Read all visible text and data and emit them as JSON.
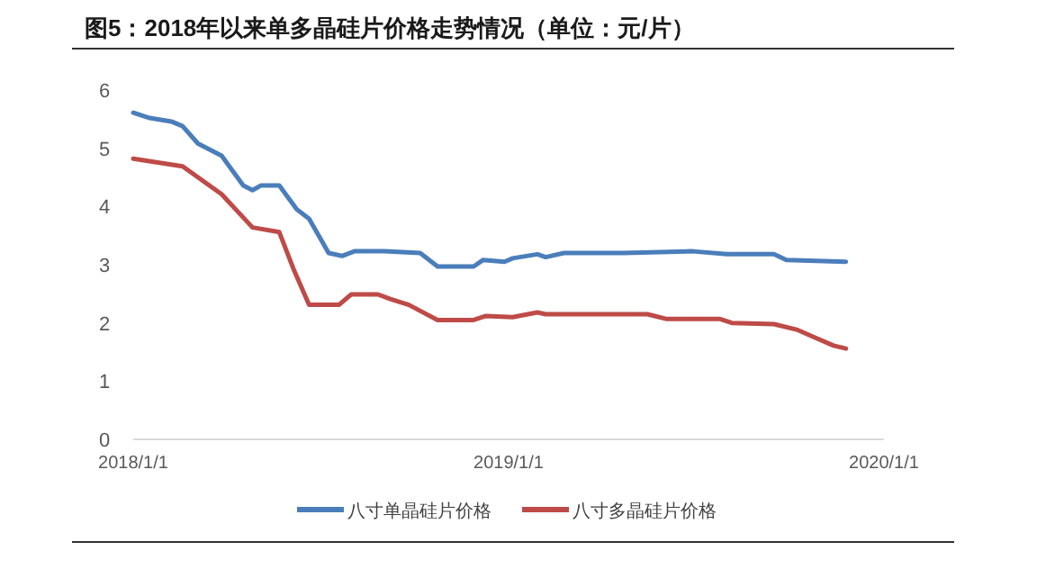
{
  "chart_data": {
    "type": "line",
    "title": "图5：2018年以来单多晶硅片价格走势情况（单位：元/片）",
    "xlim": [
      "2018-01-01",
      "2020-01-01"
    ],
    "xticks": [
      {
        "value": "2018-01-01",
        "label": "2018/1/1"
      },
      {
        "value": "2019-01-01",
        "label": "2019/1/1"
      },
      {
        "value": "2020-01-01",
        "label": "2020/1/1"
      }
    ],
    "ylim": [
      0,
      6
    ],
    "yticks": [
      0,
      1,
      2,
      3,
      4,
      5,
      6
    ],
    "grid": false,
    "legend": "bottom",
    "marker": "none",
    "line_style": "solid",
    "series": [
      {
        "name": "八寸单晶硅片价格",
        "color": "#4a7ebb",
        "x": [
          "2018-01-01",
          "2018-01-17",
          "2018-02-07",
          "2018-02-18",
          "2018-03-05",
          "2018-03-28",
          "2018-04-18",
          "2018-04-27",
          "2018-05-05",
          "2018-05-23",
          "2018-06-09",
          "2018-06-21",
          "2018-07-10",
          "2018-07-23",
          "2018-08-04",
          "2018-09-02",
          "2018-10-07",
          "2018-10-24",
          "2018-11-28",
          "2018-12-07",
          "2018-12-28",
          "2019-01-05",
          "2019-01-29",
          "2019-02-06",
          "2019-02-24",
          "2019-04-23",
          "2019-06-29",
          "2019-08-01",
          "2019-09-16",
          "2019-09-28",
          "2019-11-25"
        ],
        "values": [
          5.61,
          5.52,
          5.46,
          5.38,
          5.08,
          4.87,
          4.36,
          4.28,
          4.36,
          4.36,
          3.95,
          3.79,
          3.2,
          3.15,
          3.23,
          3.23,
          3.2,
          2.97,
          2.97,
          3.08,
          3.05,
          3.11,
          3.18,
          3.13,
          3.2,
          3.2,
          3.23,
          3.18,
          3.18,
          3.08,
          3.05
        ]
      },
      {
        "name": "八寸多晶硅片价格",
        "color": "#be4b48",
        "x": [
          "2018-01-01",
          "2018-02-18",
          "2018-03-28",
          "2018-04-27",
          "2018-05-23",
          "2018-06-06",
          "2018-06-21",
          "2018-07-20",
          "2018-08-01",
          "2018-08-27",
          "2018-09-08",
          "2018-09-26",
          "2018-10-24",
          "2018-11-28",
          "2018-12-10",
          "2019-01-05",
          "2019-01-29",
          "2019-02-06",
          "2019-05-16",
          "2019-06-03",
          "2019-07-25",
          "2019-08-06",
          "2019-09-16",
          "2019-10-09",
          "2019-10-27",
          "2019-11-13",
          "2019-11-25"
        ],
        "values": [
          4.82,
          4.69,
          4.21,
          3.64,
          3.56,
          2.92,
          2.31,
          2.31,
          2.49,
          2.49,
          2.41,
          2.31,
          2.05,
          2.05,
          2.12,
          2.1,
          2.18,
          2.15,
          2.15,
          2.07,
          2.07,
          2.0,
          1.98,
          1.88,
          1.74,
          1.61,
          1.56
        ]
      }
    ]
  }
}
